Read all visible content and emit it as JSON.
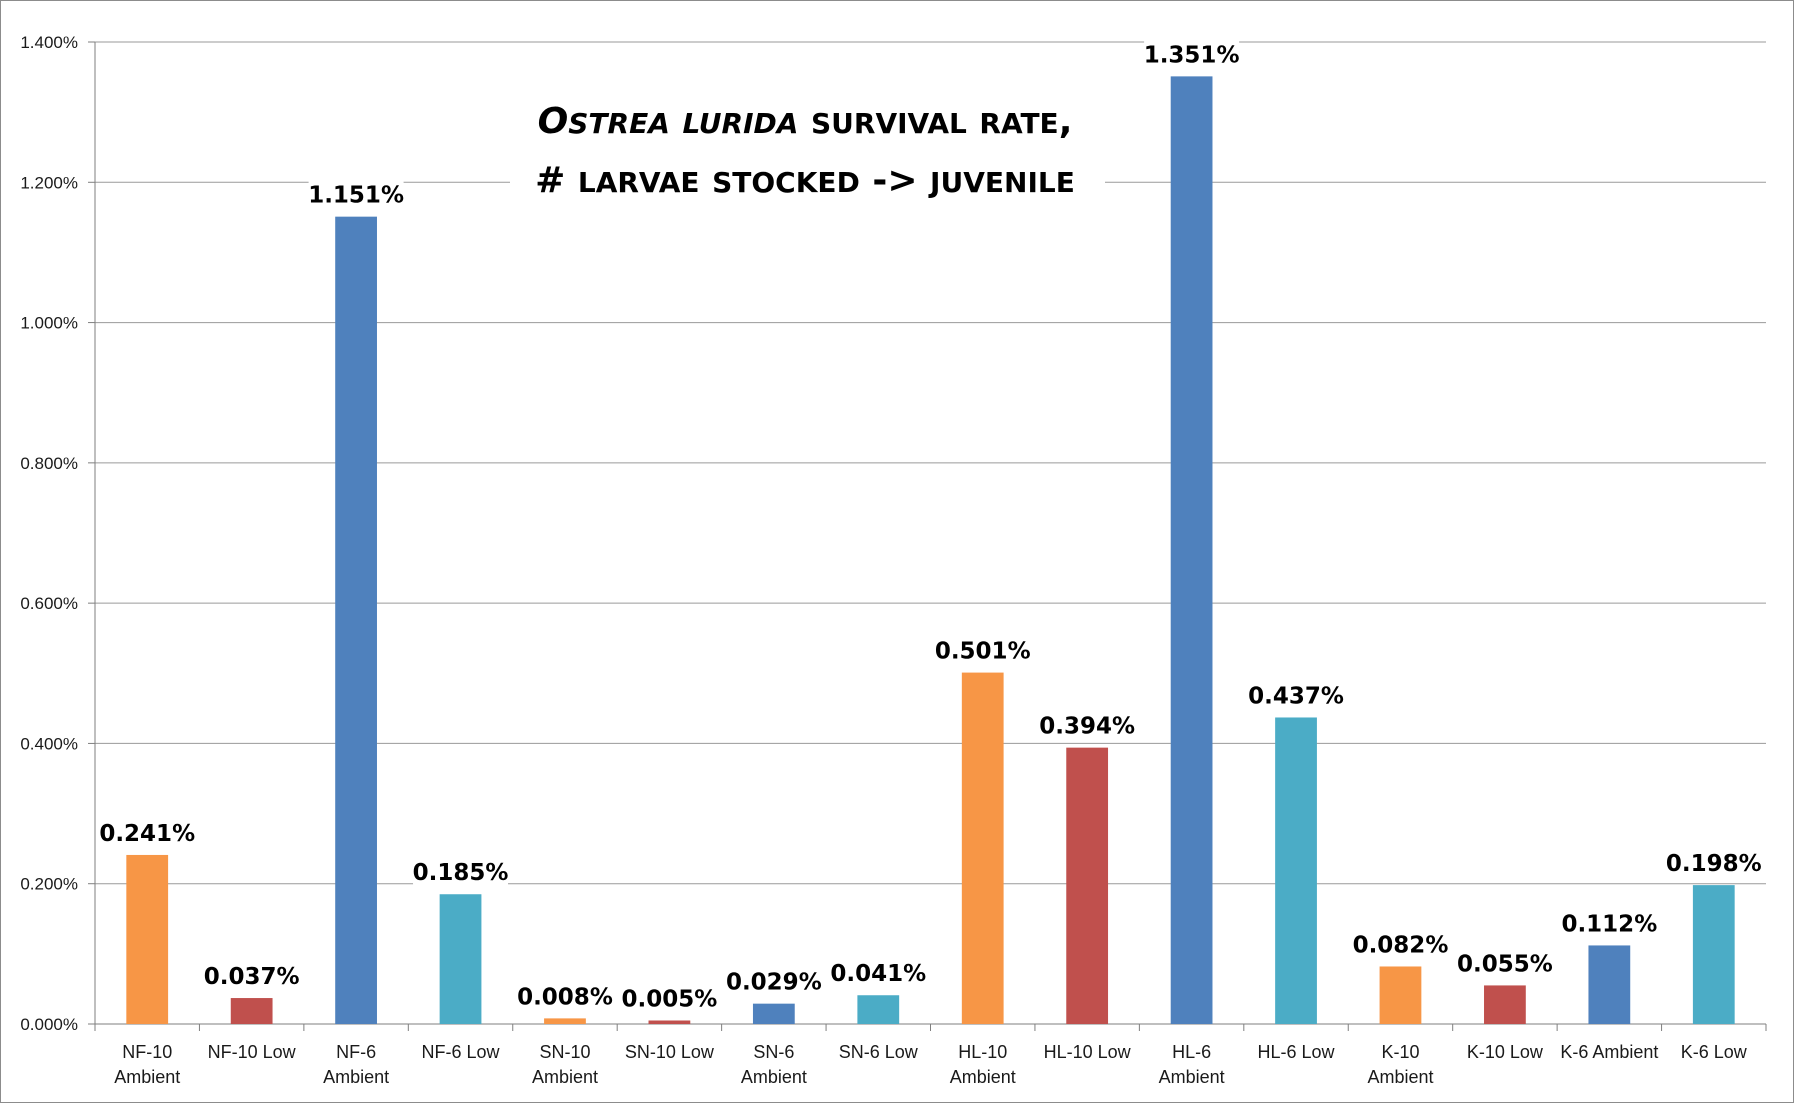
{
  "chart_data": {
    "type": "bar",
    "title_line1_italic": "Ostrea lurida",
    "title_line1_rest": " survival rate,",
    "title_line2": "# larvae stocked -> juvenile",
    "xlabel": "",
    "ylabel": "",
    "ylim": [
      0,
      1.4
    ],
    "y_ticks": [
      "0.000%",
      "0.200%",
      "0.400%",
      "0.600%",
      "0.800%",
      "1.000%",
      "1.200%",
      "1.400%"
    ],
    "y_tick_values": [
      0,
      0.2,
      0.4,
      0.6,
      0.8,
      1.0,
      1.2,
      1.4
    ],
    "grid": true,
    "categories": [
      [
        "NF-10",
        "Ambient"
      ],
      [
        "NF-10 Low"
      ],
      [
        "NF-6",
        "Ambient"
      ],
      [
        "NF-6 Low"
      ],
      [
        "SN-10",
        "Ambient"
      ],
      [
        "SN-10 Low"
      ],
      [
        "SN-6",
        "Ambient"
      ],
      [
        "SN-6 Low"
      ],
      [
        "HL-10",
        "Ambient"
      ],
      [
        "HL-10 Low"
      ],
      [
        "HL-6",
        "Ambient"
      ],
      [
        "HL-6 Low"
      ],
      [
        "K-10",
        "Ambient"
      ],
      [
        "K-10 Low"
      ],
      [
        "K-6 Ambient"
      ],
      [
        "K-6 Low"
      ]
    ],
    "values": [
      0.241,
      0.037,
      1.151,
      0.185,
      0.008,
      0.005,
      0.029,
      0.041,
      0.501,
      0.394,
      1.351,
      0.437,
      0.082,
      0.055,
      0.112,
      0.198
    ],
    "data_labels": [
      "0.241%",
      "0.037%",
      "1.151%",
      "0.185%",
      "0.008%",
      "0.005%",
      "0.029%",
      "0.041%",
      "0.501%",
      "0.394%",
      "1.351%",
      "0.437%",
      "0.082%",
      "0.055%",
      "0.112%",
      "0.198%"
    ],
    "colors": [
      "#F79646",
      "#C0504D",
      "#4F81BD",
      "#4BACC6",
      "#F79646",
      "#C0504D",
      "#4F81BD",
      "#4BACC6",
      "#F79646",
      "#C0504D",
      "#4F81BD",
      "#4BACC6",
      "#F79646",
      "#C0504D",
      "#4F81BD",
      "#4BACC6"
    ]
  }
}
